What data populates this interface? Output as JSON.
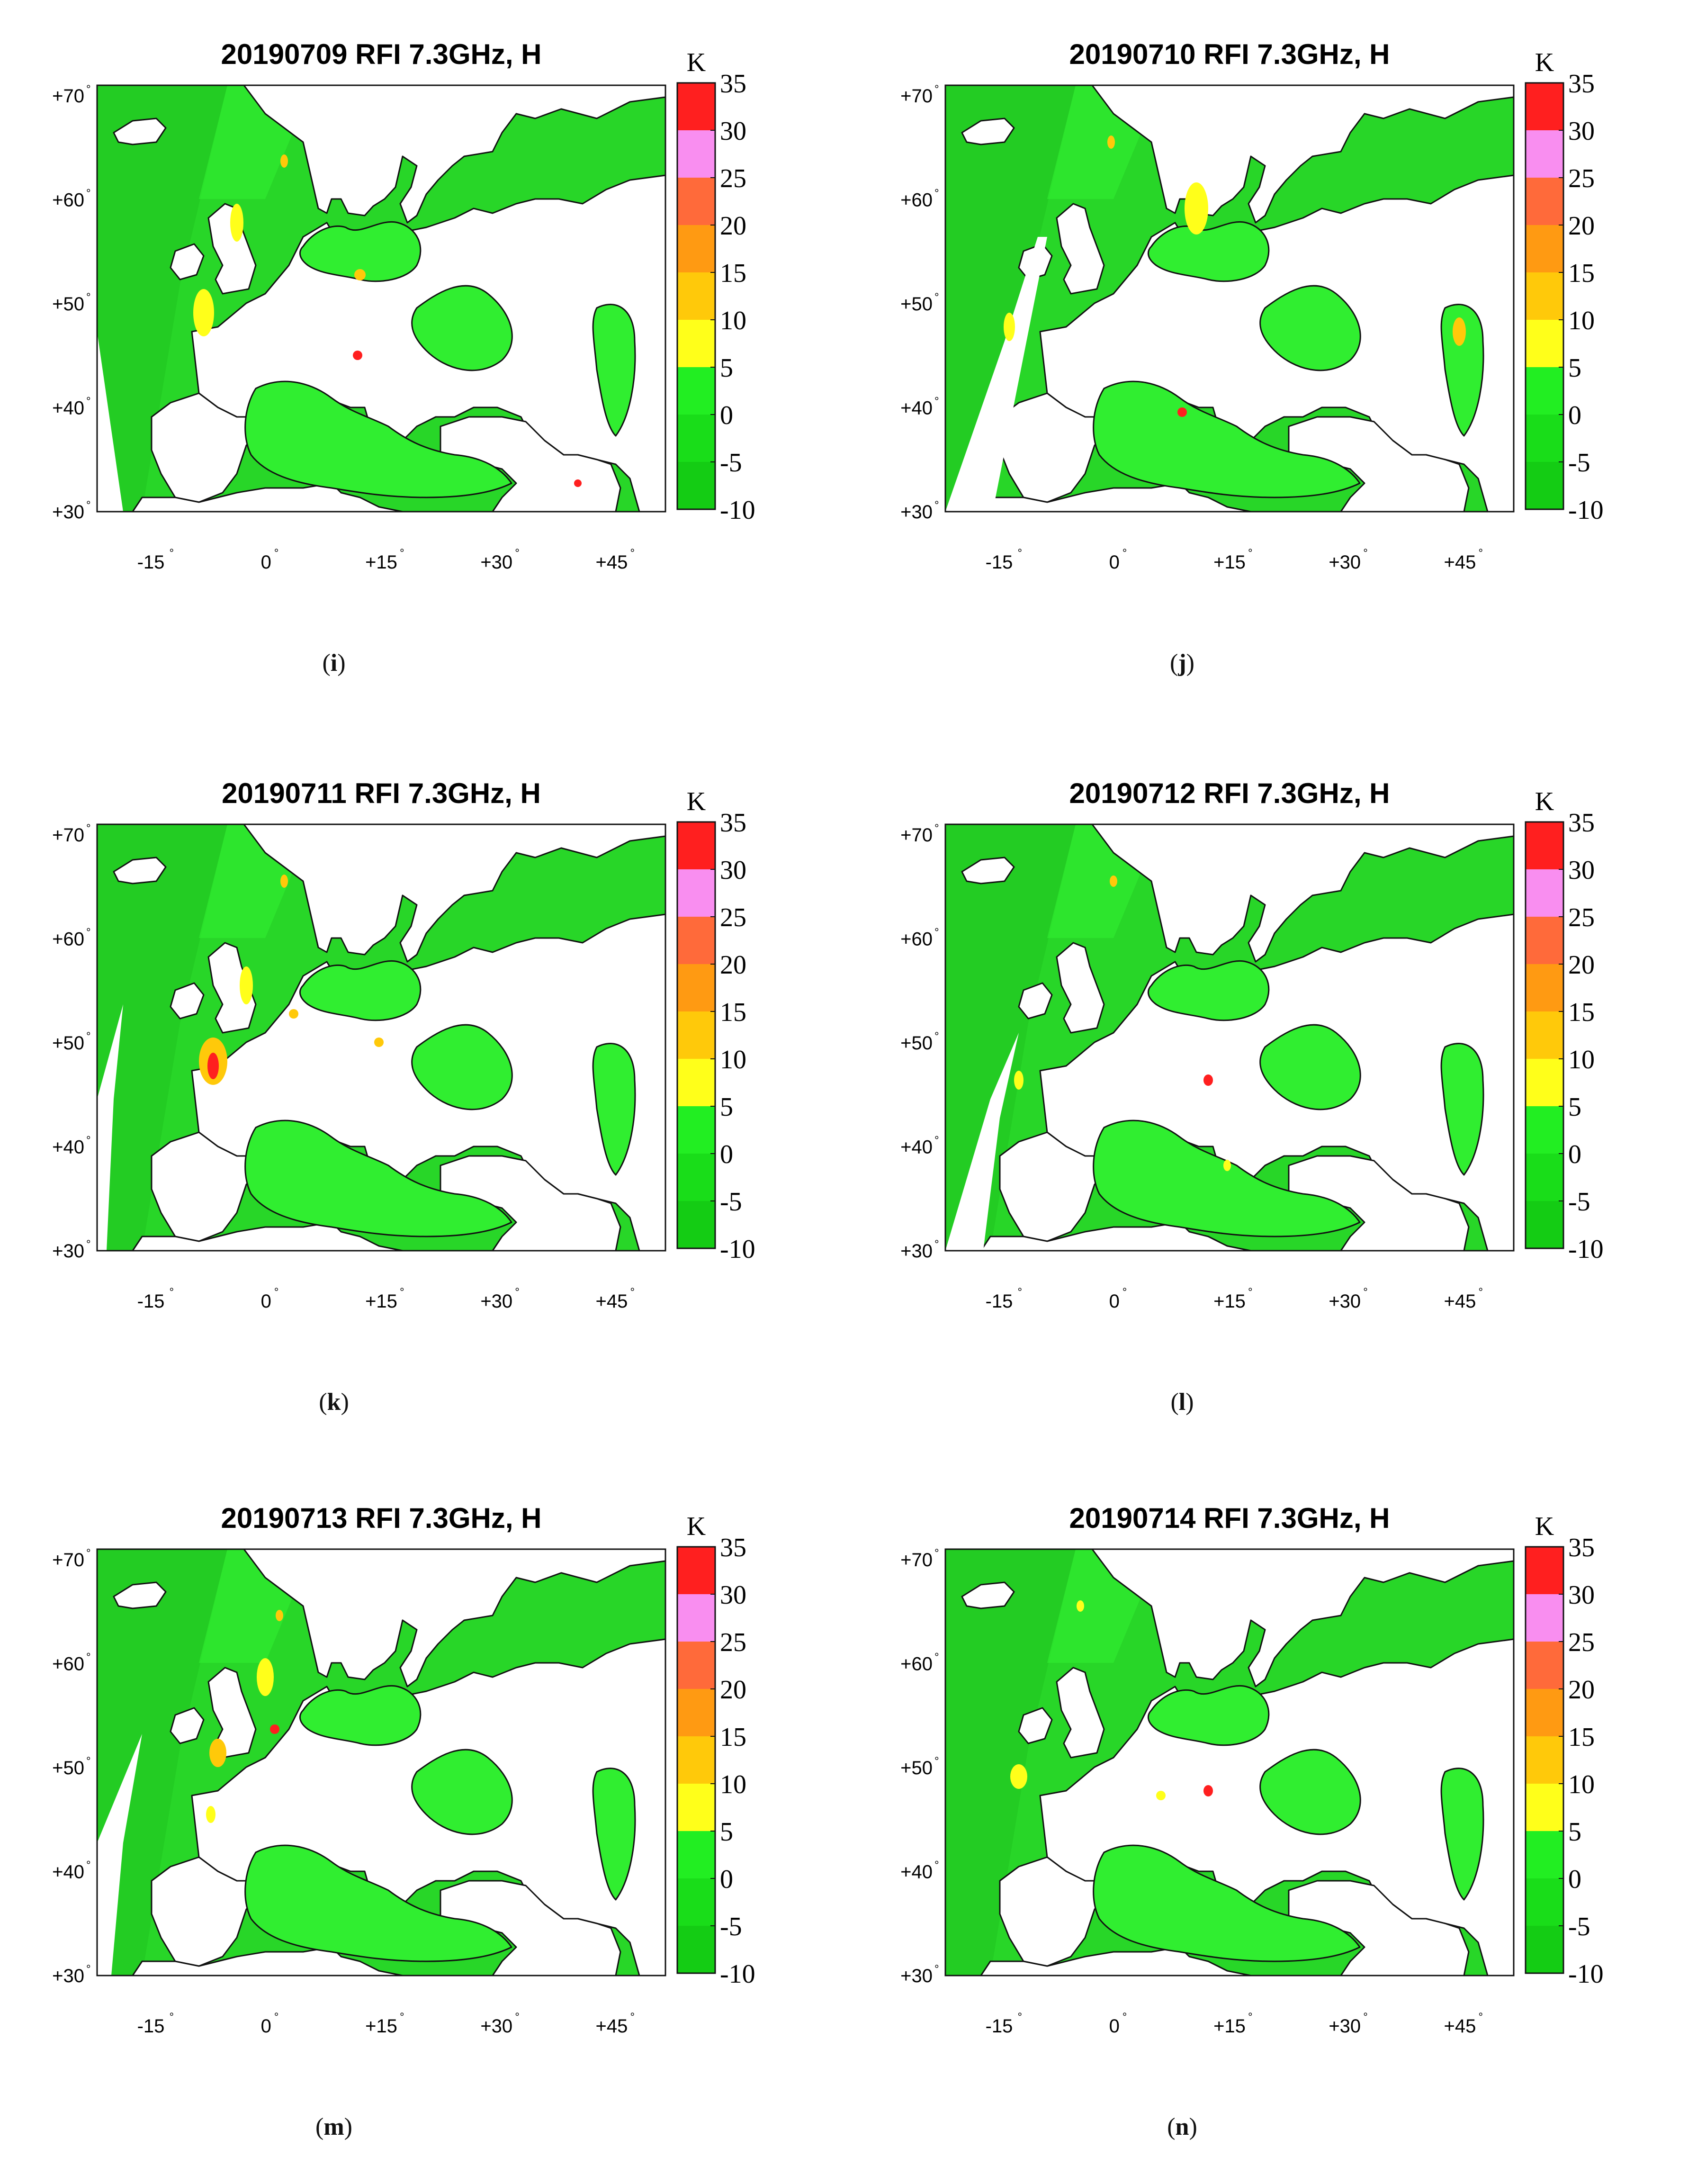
{
  "colorbar": {
    "unit": "K",
    "labels": [
      "35",
      "30",
      "25",
      "20",
      "15",
      "10",
      "5",
      "0",
      "-5",
      "-10"
    ],
    "bins": [
      {
        "color": "#ff1f1f"
      },
      {
        "color": "#f98ef0"
      },
      {
        "color": "#ff6a3a"
      },
      {
        "color": "#ff9a12"
      },
      {
        "color": "#ffc90a"
      },
      {
        "color": "#ffff1a"
      },
      {
        "color": "#22ee22"
      },
      {
        "color": "#19dd19"
      },
      {
        "color": "#14cc14"
      }
    ]
  },
  "axes": {
    "y_ticks": [
      "+70",
      "+60",
      "+50",
      "+40",
      "+30"
    ],
    "x_ticks": [
      "-15",
      "0",
      "+15",
      "+30",
      "+45"
    ],
    "degree_symbol": "°"
  },
  "panels": [
    {
      "title": "20190709 RFI 7.3GHz, H",
      "caption_letter": "i"
    },
    {
      "title": "20190710 RFI 7.3GHz, H",
      "caption_letter": "j"
    },
    {
      "title": "20190711 RFI 7.3GHz, H",
      "caption_letter": "k"
    },
    {
      "title": "20190712 RFI 7.3GHz, H",
      "caption_letter": "l"
    },
    {
      "title": "20190713 RFI 7.3GHz, H",
      "caption_letter": "m"
    },
    {
      "title": "20190714 RFI 7.3GHz, H",
      "caption_letter": "n"
    }
  ],
  "map_colors": {
    "ocean_base": "#28d628",
    "ocean_dark": "#1fc51f",
    "sea_light": "#30ee30",
    "land": "#ffffff",
    "coast": "#111111",
    "rfi_yellow": "#ffff1a",
    "rfi_orange": "#ffc90a",
    "rfi_red": "#ff1f1f"
  }
}
